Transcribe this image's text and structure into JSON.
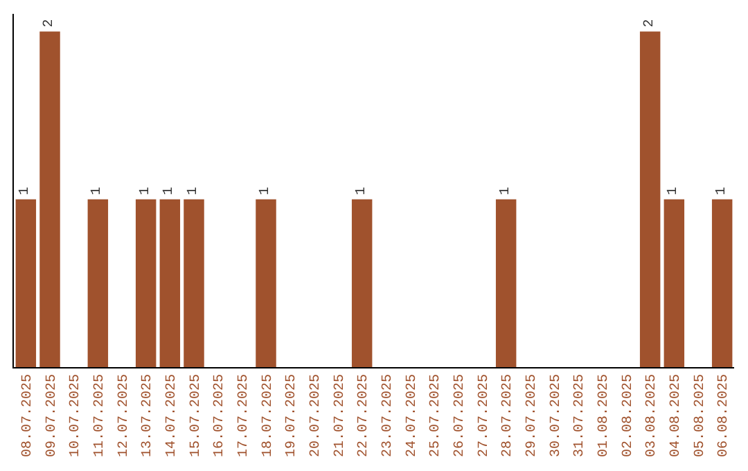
{
  "chart_data": {
    "type": "bar",
    "color": "#a0522d",
    "categories": [
      "08.07.2025",
      "09.07.2025",
      "10.07.2025",
      "11.07.2025",
      "12.07.2025",
      "13.07.2025",
      "14.07.2025",
      "15.07.2025",
      "16.07.2025",
      "17.07.2025",
      "18.07.2025",
      "19.07.2025",
      "20.07.2025",
      "21.07.2025",
      "22.07.2025",
      "23.07.2025",
      "24.07.2025",
      "25.07.2025",
      "26.07.2025",
      "27.07.2025",
      "28.07.2025",
      "29.07.2025",
      "30.07.2025",
      "31.07.2025",
      "01.08.2025",
      "02.08.2025",
      "03.08.2025",
      "04.08.2025",
      "05.08.2025",
      "06.08.2025"
    ],
    "values": [
      1,
      2,
      0,
      1,
      0,
      1,
      1,
      1,
      0,
      0,
      1,
      0,
      0,
      0,
      1,
      0,
      0,
      0,
      0,
      0,
      1,
      0,
      0,
      0,
      0,
      0,
      2,
      1,
      0,
      1
    ],
    "value_labels": [
      "1",
      "2",
      null,
      "1",
      null,
      "1",
      "1",
      "1",
      null,
      null,
      "1",
      null,
      null,
      null,
      "1",
      null,
      null,
      null,
      null,
      null,
      "1",
      null,
      null,
      null,
      null,
      null,
      "2",
      "1",
      null,
      "1"
    ],
    "legend": false
  }
}
